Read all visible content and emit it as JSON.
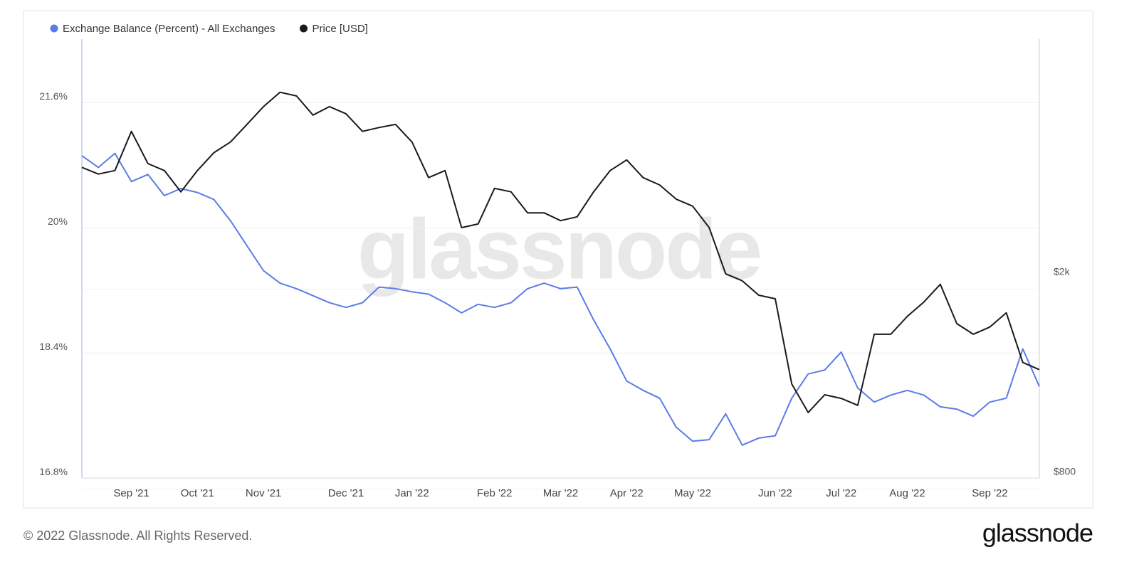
{
  "chart_data": {
    "type": "line",
    "watermark": "glassnode",
    "categories": [
      null,
      null,
      null,
      "Sep '21",
      null,
      null,
      null,
      "Oct '21",
      null,
      null,
      null,
      "Nov '21",
      null,
      null,
      null,
      null,
      "Dec '21",
      null,
      null,
      null,
      "Jan '22",
      null,
      null,
      null,
      null,
      "Feb '22",
      null,
      null,
      null,
      "Mar '22",
      null,
      null,
      null,
      "Apr '22",
      null,
      null,
      null,
      "May '22",
      null,
      null,
      null,
      null,
      "Jun '22",
      null,
      null,
      null,
      "Jul '22",
      null,
      null,
      null,
      "Aug '22",
      null,
      null,
      null,
      null,
      "Sep '22",
      null,
      null,
      null
    ],
    "series": [
      {
        "name": "Exchange Balance (Percent) - All Exchanges",
        "color": "#5b7be8",
        "axis": "y",
        "values": [
          20.85,
          20.7,
          20.88,
          20.52,
          20.61,
          20.34,
          20.43,
          20.38,
          20.29,
          20.02,
          19.7,
          19.38,
          19.22,
          19.15,
          19.06,
          18.97,
          18.91,
          18.97,
          19.17,
          19.15,
          19.11,
          19.08,
          18.97,
          18.84,
          18.95,
          18.91,
          18.97,
          19.15,
          19.22,
          19.15,
          19.17,
          18.75,
          18.38,
          17.97,
          17.85,
          17.75,
          17.38,
          17.2,
          17.22,
          17.55,
          17.15,
          17.24,
          17.27,
          17.75,
          18.06,
          18.11,
          18.34,
          17.88,
          17.7,
          17.79,
          17.85,
          17.79,
          17.64,
          17.61,
          17.52,
          17.7,
          17.75,
          18.38,
          17.9
        ]
      },
      {
        "name": "Price [USD]",
        "color": "#1a1a1a",
        "axis": "y2",
        "values": [
          3236,
          3138,
          3189,
          3817,
          3292,
          3189,
          2893,
          3189,
          3462,
          3634,
          3940,
          4275,
          4566,
          4490,
          4113,
          4275,
          4138,
          3817,
          3884,
          3940,
          3634,
          3088,
          3189,
          2455,
          2496,
          2939,
          2893,
          2627,
          2627,
          2535,
          2580,
          2893,
          3189,
          3349,
          3088,
          2986,
          2798,
          2709,
          2455,
          1987,
          1924,
          1801,
          1772,
          1199,
          1052,
          1141,
          1122,
          1087,
          1506,
          1506,
          1634,
          1745,
          1893,
          1581,
          1506,
          1556,
          1661,
          1323,
          1280
        ]
      }
    ],
    "ylim": [
      16.73,
      22.34
    ],
    "yticks": [
      {
        "value": 16.8,
        "label": "16.8%"
      },
      {
        "value": 18.4,
        "label": "18.4%"
      },
      {
        "value": 20,
        "label": "20%"
      },
      {
        "value": 21.6,
        "label": "21.6%"
      }
    ],
    "y2lim": [
      779,
      5826
    ],
    "y2ticks": [
      {
        "value": 800,
        "label": "$800"
      },
      {
        "value": 2000,
        "label": "$2k"
      }
    ],
    "y2log": true,
    "grid": true,
    "legend": "top-left"
  },
  "footer": {
    "copyright": "© 2022 Glassnode. All Rights Reserved.",
    "logo": "glassnode"
  }
}
